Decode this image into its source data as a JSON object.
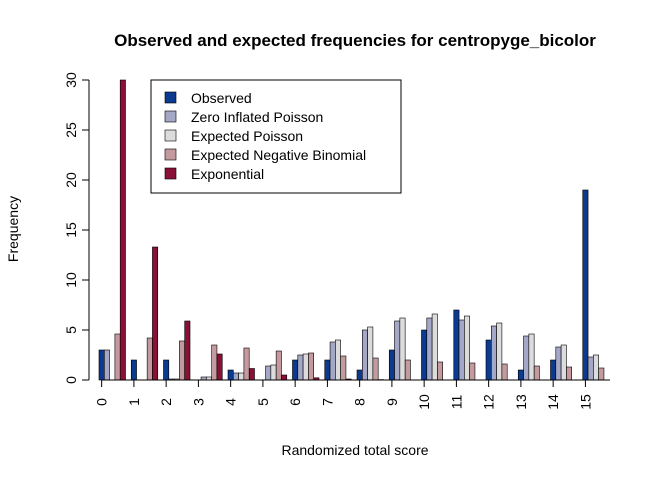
{
  "chart_data": {
    "type": "bar",
    "title": "Observed and expected frequencies for centropyge_bicolor",
    "xlabel": "Randomized total score",
    "ylabel": "Frequency",
    "ylim": [
      0,
      30
    ],
    "yticks": [
      0,
      5,
      10,
      15,
      20,
      25,
      30
    ],
    "categories": [
      "0",
      "1",
      "2",
      "3",
      "4",
      "5",
      "6",
      "7",
      "8",
      "9",
      "10",
      "11",
      "12",
      "13",
      "14",
      "15"
    ],
    "legend_position": "top-left",
    "grid": false,
    "series": [
      {
        "name": "Observed",
        "color": "#0c3a8f",
        "values": [
          3,
          2,
          2,
          0,
          1,
          0,
          2,
          2,
          1,
          3,
          5,
          7,
          4,
          1,
          2,
          19
        ]
      },
      {
        "name": "Zero Inflated Poisson",
        "color": "#a4a8c6",
        "values": [
          3,
          0,
          0.1,
          0.3,
          0.7,
          1.4,
          2.5,
          3.8,
          5.0,
          5.9,
          6.2,
          6.0,
          5.4,
          4.4,
          3.3,
          2.3
        ]
      },
      {
        "name": "Expected Poisson",
        "color": "#dcdcdc",
        "values": [
          0,
          0,
          0.1,
          0.3,
          0.7,
          1.5,
          2.6,
          4.0,
          5.3,
          6.2,
          6.6,
          6.4,
          5.7,
          4.6,
          3.5,
          2.5
        ]
      },
      {
        "name": "Expected Negative Binomial",
        "color": "#c49a9e",
        "values": [
          4.6,
          4.2,
          3.9,
          3.5,
          3.2,
          2.9,
          2.7,
          2.4,
          2.2,
          2.0,
          1.8,
          1.7,
          1.6,
          1.4,
          1.3,
          1.2
        ]
      },
      {
        "name": "Exponential",
        "color": "#8b1038",
        "values": [
          30,
          13.3,
          5.9,
          2.6,
          1.15,
          0.5,
          0.22,
          0.1,
          0.04,
          0.02,
          0.01,
          0,
          0,
          0,
          0,
          0
        ]
      }
    ]
  }
}
